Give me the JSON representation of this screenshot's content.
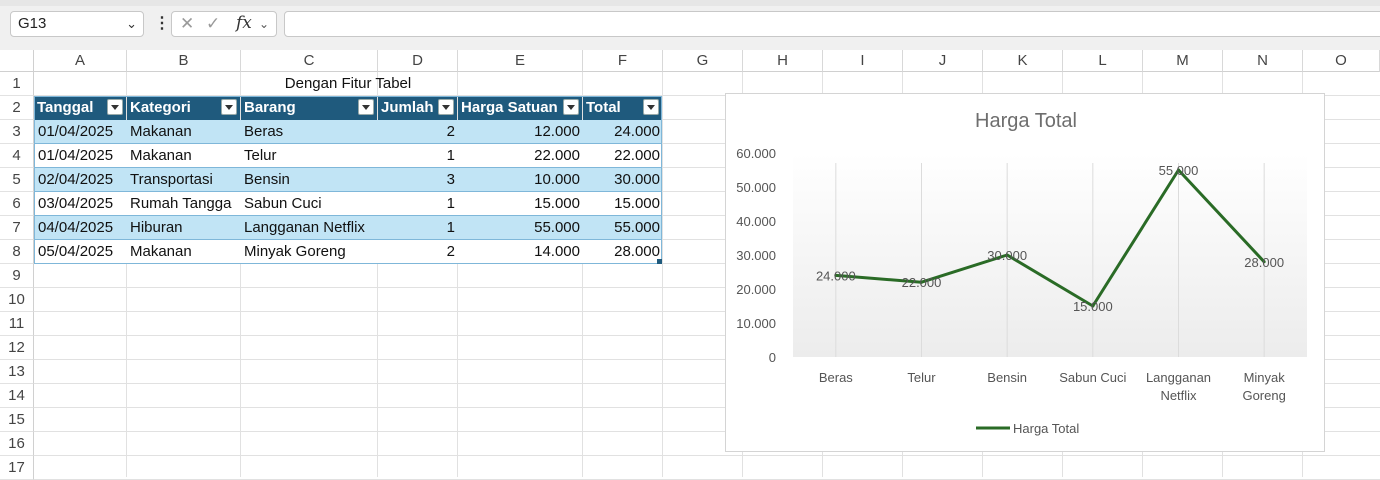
{
  "formula_bar": {
    "name_box": "G13",
    "fx_label": "fx",
    "formula": ""
  },
  "columns": [
    "A",
    "B",
    "C",
    "D",
    "E",
    "F",
    "G",
    "H",
    "I",
    "J",
    "K",
    "L",
    "M",
    "N",
    "O"
  ],
  "rows": [
    "1",
    "2",
    "3",
    "4",
    "5",
    "6",
    "7",
    "8",
    "9",
    "10",
    "11",
    "12",
    "13",
    "14",
    "15",
    "16",
    "17"
  ],
  "sheet": {
    "title": "Dengan Fitur Tabel",
    "headers": [
      "Tanggal",
      "Kategori",
      "Barang",
      "Jumlah",
      "Harga Satuan",
      "Total"
    ],
    "data": [
      [
        "01/04/2025",
        "Makanan",
        "Beras",
        "2",
        "12.000",
        "24.000"
      ],
      [
        "01/04/2025",
        "Makanan",
        "Telur",
        "1",
        "22.000",
        "22.000"
      ],
      [
        "02/04/2025",
        "Transportasi",
        "Bensin",
        "3",
        "10.000",
        "30.000"
      ],
      [
        "03/04/2025",
        "Rumah Tangga",
        "Sabun Cuci",
        "1",
        "15.000",
        "15.000"
      ],
      [
        "04/04/2025",
        "Hiburan",
        "Langganan Netflix",
        "1",
        "55.000",
        "55.000"
      ],
      [
        "05/04/2025",
        "Makanan",
        "Minyak Goreng",
        "2",
        "14.000",
        "28.000"
      ]
    ]
  },
  "chart_data": {
    "type": "line",
    "title": "Harga Total",
    "categories": [
      [
        "Beras"
      ],
      [
        "Telur"
      ],
      [
        "Bensin"
      ],
      [
        "Sabun Cuci"
      ],
      [
        "Langganan",
        "Netflix"
      ],
      [
        "Minyak",
        "Goreng"
      ]
    ],
    "series": [
      {
        "name": "Harga Total",
        "values": [
          24000,
          22000,
          30000,
          15000,
          55000,
          28000
        ],
        "color": "#2a6b26"
      }
    ],
    "data_labels": [
      "24.000",
      "22.000",
      "30.000",
      "15.000",
      "55.000",
      "28.000"
    ],
    "y_ticks": [
      "0",
      "10.000",
      "20.000",
      "30.000",
      "40.000",
      "50.000",
      "60.000"
    ],
    "ylim": [
      0,
      60000
    ],
    "legend_position": "bottom",
    "gridlines": "vertical"
  }
}
